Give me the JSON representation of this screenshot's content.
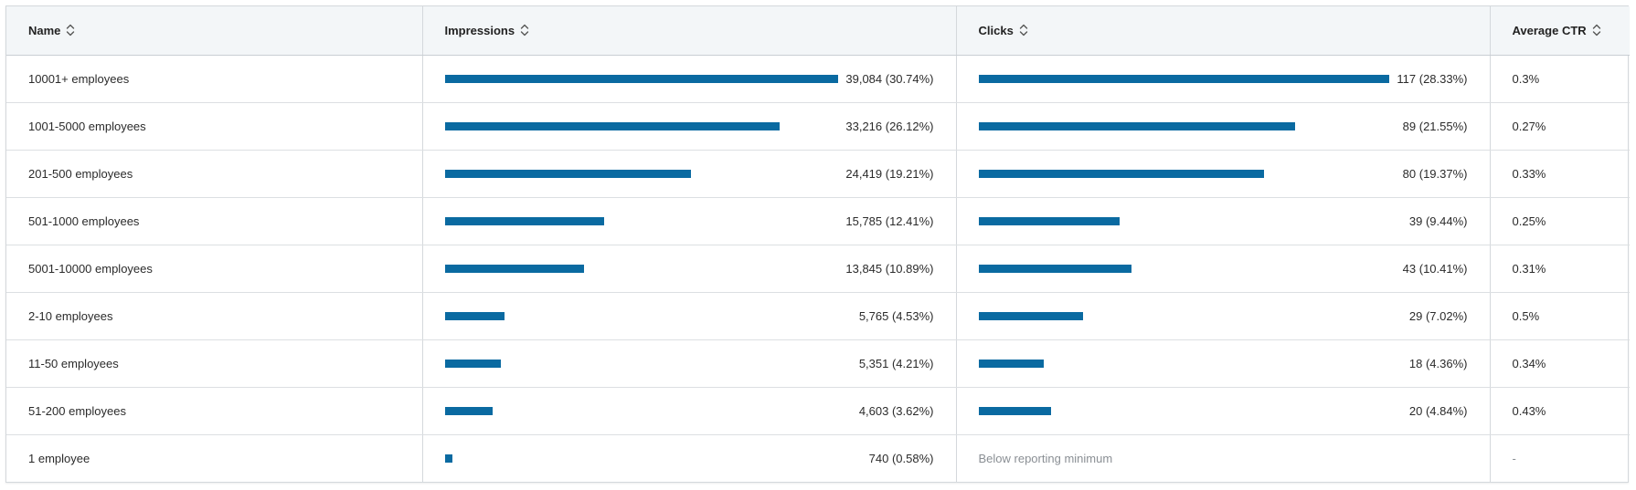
{
  "colors": {
    "bar": "#0a6aa1",
    "header_bg": "#f3f6f8"
  },
  "columns": {
    "name": "Name",
    "impressions": "Impressions",
    "clicks": "Clicks",
    "ctr": "Average CTR"
  },
  "rows": [
    {
      "name": "10001+ employees",
      "impressions_label": "39,084 (30.74%)",
      "impressions_ratio": 1.0,
      "clicks_label": "117 (28.33%)",
      "clicks_ratio": 1.0,
      "ctr": "0.3%"
    },
    {
      "name": "1001-5000 employees",
      "impressions_label": "33,216 (26.12%)",
      "impressions_ratio": 0.85,
      "clicks_label": "89 (21.55%)",
      "clicks_ratio": 0.76,
      "ctr": "0.27%"
    },
    {
      "name": "201-500 employees",
      "impressions_label": "24,419 (19.21%)",
      "impressions_ratio": 0.625,
      "clicks_label": "80 (19.37%)",
      "clicks_ratio": 0.684,
      "ctr": "0.33%"
    },
    {
      "name": "501-1000 employees",
      "impressions_label": "15,785 (12.41%)",
      "impressions_ratio": 0.404,
      "clicks_label": "39 (9.44%)",
      "clicks_ratio": 0.333,
      "ctr": "0.25%"
    },
    {
      "name": "5001-10000 employees",
      "impressions_label": "13,845 (10.89%)",
      "impressions_ratio": 0.354,
      "clicks_label": "43 (10.41%)",
      "clicks_ratio": 0.368,
      "ctr": "0.31%"
    },
    {
      "name": "2-10 employees",
      "impressions_label": "5,765 (4.53%)",
      "impressions_ratio": 0.148,
      "clicks_label": "29 (7.02%)",
      "clicks_ratio": 0.248,
      "ctr": "0.5%"
    },
    {
      "name": "11-50 employees",
      "impressions_label": "5,351 (4.21%)",
      "impressions_ratio": 0.137,
      "clicks_label": "18 (4.36%)",
      "clicks_ratio": 0.154,
      "ctr": "0.34%"
    },
    {
      "name": "51-200 employees",
      "impressions_label": "4,603 (3.62%)",
      "impressions_ratio": 0.118,
      "clicks_label": "20 (4.84%)",
      "clicks_ratio": 0.171,
      "ctr": "0.43%"
    },
    {
      "name": "1 employee",
      "impressions_label": "740 (0.58%)",
      "impressions_ratio": 0.019,
      "clicks_label": "Below reporting minimum",
      "clicks_ratio": null,
      "ctr": "-"
    }
  ]
}
